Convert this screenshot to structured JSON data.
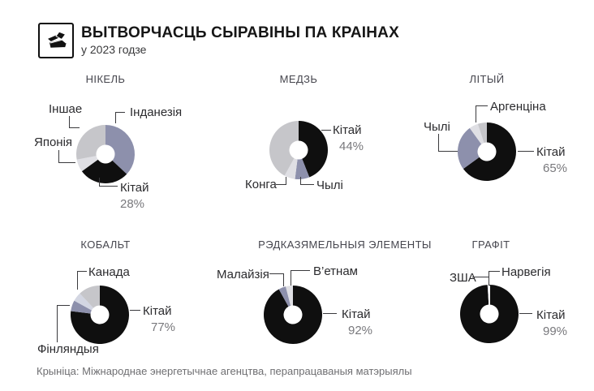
{
  "header": {
    "title": "ВЫТВОРЧАСЦЬ СЫРАВІНЫ ПА КРАІНАХ",
    "subtitle": "у 2023 годзе",
    "icon": "metal-ingots-icon"
  },
  "footer": {
    "source": "Крыніца: Міжнароднае энергетычнае агенцтва, перапрацаваныя матэрыялы"
  },
  "colors": {
    "black": "#0f0f0f",
    "slate": "#8d90ac",
    "gray": "#c6c6ca",
    "light": "#dfdfe4",
    "paleblue": "#d3d6e2"
  },
  "chart_data": [
    {
      "type": "donut",
      "title": "НІКЕЛЬ",
      "unit": "%",
      "slices": [
        {
          "label": "Інданезія",
          "value": 37,
          "color": "slate"
        },
        {
          "label": "Кітай",
          "value": 28,
          "color": "black",
          "pct_label": "28%"
        },
        {
          "label": "Японія",
          "value": 7,
          "color": "light"
        },
        {
          "label": "Іншае",
          "value": 28,
          "color": "gray"
        }
      ]
    },
    {
      "type": "donut",
      "title": "МЕДЗЬ",
      "unit": "%",
      "slices": [
        {
          "label": "Кітай",
          "value": 44,
          "color": "black",
          "pct_label": "44%"
        },
        {
          "label": "Чылі",
          "value": 8,
          "color": "slate"
        },
        {
          "label": "Конга",
          "value": 6,
          "color": "light"
        },
        {
          "label": "",
          "value": 42,
          "color": "gray"
        }
      ]
    },
    {
      "type": "donut",
      "title": "ЛІТЫЙ",
      "unit": "%",
      "slices": [
        {
          "label": "Кітай",
          "value": 65,
          "color": "black",
          "pct_label": "65%"
        },
        {
          "label": "Чылі",
          "value": 25,
          "color": "slate"
        },
        {
          "label": "Аргенціна",
          "value": 5,
          "color": "light"
        },
        {
          "label": "",
          "value": 5,
          "color": "gray"
        }
      ]
    },
    {
      "type": "donut",
      "title": "КОБАЛЬТ",
      "unit": "%",
      "slices": [
        {
          "label": "Кітай",
          "value": 77,
          "color": "black",
          "pct_label": "77%"
        },
        {
          "label": "Фінляндыя",
          "value": 6,
          "color": "slate"
        },
        {
          "label": "",
          "value": 5,
          "color": "paleblue"
        },
        {
          "label": "Канада",
          "value": 12,
          "color": "gray"
        }
      ]
    },
    {
      "type": "donut",
      "title": "РЭДКАЗЯМЕЛЬНЫЯ ЭЛЕМЕНТЫ",
      "unit": "%",
      "slices": [
        {
          "label": "Кітай",
          "value": 92,
          "color": "black",
          "pct_label": "92%"
        },
        {
          "label": "Малайзія",
          "value": 4,
          "color": "slate"
        },
        {
          "label": "В’етнам",
          "value": 4,
          "color": "light"
        }
      ]
    },
    {
      "type": "donut",
      "title": "ГРАФІТ",
      "unit": "%",
      "slices": [
        {
          "label": "Кітай",
          "value": 99,
          "color": "black",
          "pct_label": "99%"
        },
        {
          "label": "ЗША",
          "value": 0.5,
          "color": "light"
        },
        {
          "label": "Нарвегія",
          "value": 0.5,
          "color": "gray"
        }
      ]
    }
  ]
}
